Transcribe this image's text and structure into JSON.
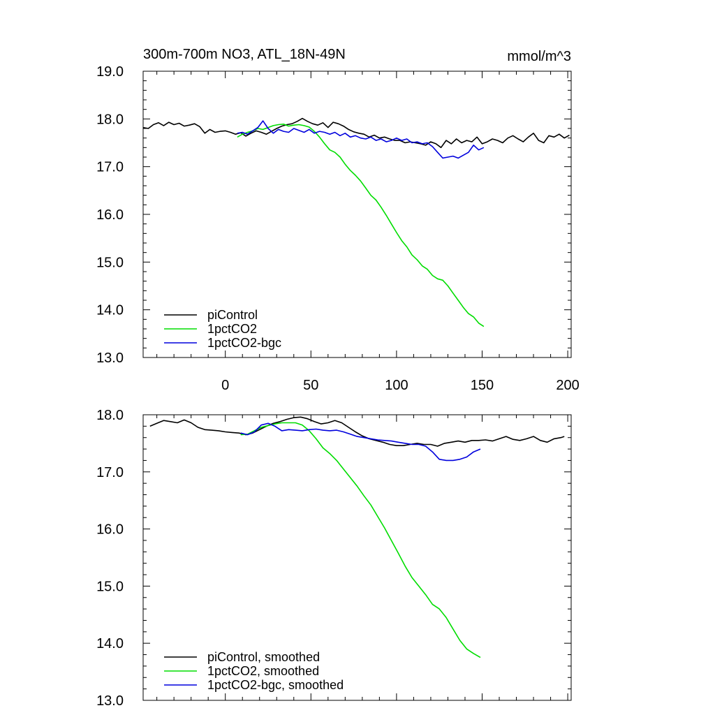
{
  "chart_data": [
    {
      "type": "line",
      "title": "300m-700m NO3, ATL_18N-49N",
      "units": "mmol/m^3",
      "xlim": [
        -48,
        202
      ],
      "ylim": [
        13.0,
        19.0
      ],
      "xticks": [
        0,
        50,
        100,
        150,
        200
      ],
      "xtick_labels": [
        "0",
        "50",
        "100",
        "150",
        "200"
      ],
      "yticks": [
        13.0,
        14.0,
        15.0,
        16.0,
        17.0,
        18.0,
        19.0
      ],
      "ytick_labels": [
        "13.0",
        "14.0",
        "15.0",
        "16.0",
        "17.0",
        "18.0",
        "19.0"
      ],
      "legend_position": "bottom-left",
      "series": [
        {
          "name": "piControl",
          "color": "#000000",
          "x": [
            -48,
            -45,
            -42,
            -39,
            -36,
            -33,
            -30,
            -27,
            -24,
            -21,
            -18,
            -15,
            -12,
            -9,
            -6,
            -3,
            0,
            3,
            6,
            9,
            12,
            15,
            18,
            21,
            24,
            27,
            30,
            33,
            36,
            39,
            42,
            45,
            48,
            51,
            54,
            57,
            60,
            63,
            66,
            69,
            72,
            75,
            78,
            81,
            84,
            87,
            90,
            93,
            96,
            99,
            102,
            105,
            108,
            111,
            114,
            117,
            120,
            123,
            126,
            129,
            132,
            135,
            138,
            141,
            144,
            147,
            150,
            153,
            156,
            159,
            162,
            165,
            168,
            171,
            174,
            177,
            180,
            183,
            186,
            189,
            192,
            195,
            198,
            201
          ],
          "y": [
            17.82,
            17.8,
            17.88,
            17.92,
            17.86,
            17.93,
            17.88,
            17.91,
            17.85,
            17.87,
            17.9,
            17.84,
            17.7,
            17.78,
            17.72,
            17.74,
            17.75,
            17.72,
            17.68,
            17.71,
            17.64,
            17.7,
            17.75,
            17.72,
            17.68,
            17.74,
            17.8,
            17.85,
            17.88,
            17.9,
            17.95,
            18.01,
            17.95,
            17.9,
            17.87,
            17.92,
            17.82,
            17.93,
            17.9,
            17.85,
            17.78,
            17.73,
            17.7,
            17.68,
            17.62,
            17.66,
            17.6,
            17.62,
            17.58,
            17.55,
            17.55,
            17.5,
            17.52,
            17.5,
            17.48,
            17.45,
            17.52,
            17.48,
            17.4,
            17.55,
            17.48,
            17.58,
            17.5,
            17.55,
            17.52,
            17.62,
            17.48,
            17.52,
            17.58,
            17.55,
            17.5,
            17.6,
            17.65,
            17.58,
            17.52,
            17.62,
            17.7,
            17.55,
            17.5,
            17.65,
            17.62,
            17.68,
            17.6,
            17.66
          ]
        },
        {
          "name": "1pctCO2",
          "color": "#00dd00",
          "x": [
            7,
            10,
            13,
            16,
            19,
            22,
            25,
            28,
            31,
            34,
            37,
            40,
            43,
            46,
            49,
            52,
            55,
            58,
            61,
            64,
            67,
            70,
            73,
            76,
            79,
            82,
            85,
            88,
            91,
            94,
            97,
            100,
            103,
            106,
            109,
            112,
            115,
            118,
            121,
            124,
            127,
            130,
            133,
            136,
            139,
            142,
            145,
            148,
            151
          ],
          "y": [
            17.62,
            17.68,
            17.72,
            17.75,
            17.8,
            17.78,
            17.82,
            17.86,
            17.88,
            17.89,
            17.85,
            17.87,
            17.88,
            17.86,
            17.83,
            17.74,
            17.62,
            17.48,
            17.35,
            17.3,
            17.2,
            17.05,
            16.92,
            16.82,
            16.7,
            16.55,
            16.4,
            16.3,
            16.15,
            15.98,
            15.8,
            15.62,
            15.45,
            15.32,
            15.15,
            15.05,
            14.92,
            14.85,
            14.72,
            14.65,
            14.62,
            14.5,
            14.35,
            14.2,
            14.05,
            13.92,
            13.85,
            13.72,
            13.65
          ]
        },
        {
          "name": "1pctCO2-bgc",
          "color": "#0000dd",
          "x": [
            7,
            10,
            13,
            16,
            19,
            22,
            25,
            28,
            31,
            34,
            37,
            40,
            43,
            46,
            49,
            52,
            55,
            58,
            61,
            64,
            67,
            70,
            73,
            76,
            79,
            82,
            85,
            88,
            91,
            94,
            97,
            100,
            103,
            106,
            109,
            112,
            115,
            118,
            121,
            124,
            127,
            130,
            133,
            136,
            139,
            142,
            145,
            148,
            151
          ],
          "y": [
            17.7,
            17.72,
            17.68,
            17.75,
            17.82,
            17.96,
            17.8,
            17.7,
            17.78,
            17.74,
            17.72,
            17.8,
            17.76,
            17.72,
            17.78,
            17.7,
            17.74,
            17.72,
            17.68,
            17.72,
            17.65,
            17.7,
            17.62,
            17.65,
            17.6,
            17.58,
            17.62,
            17.55,
            17.58,
            17.52,
            17.55,
            17.6,
            17.55,
            17.58,
            17.5,
            17.52,
            17.48,
            17.5,
            17.42,
            17.3,
            17.18,
            17.2,
            17.22,
            17.18,
            17.24,
            17.3,
            17.45,
            17.35,
            17.4
          ]
        }
      ]
    },
    {
      "type": "line",
      "xlim": [
        -48,
        202
      ],
      "ylim": [
        13.0,
        18.0
      ],
      "xticks": [
        0,
        50,
        100,
        150,
        200
      ],
      "yticks": [
        13.0,
        14.0,
        15.0,
        16.0,
        17.0,
        18.0
      ],
      "ytick_labels": [
        "13.0",
        "14.0",
        "15.0",
        "16.0",
        "17.0",
        "18.0"
      ],
      "legend_position": "bottom-left",
      "series": [
        {
          "name": "piControl, smoothed",
          "color": "#000000",
          "x": [
            -44,
            -40,
            -36,
            -32,
            -28,
            -24,
            -20,
            -16,
            -12,
            -8,
            -4,
            0,
            4,
            8,
            12,
            16,
            20,
            24,
            28,
            32,
            36,
            40,
            44,
            48,
            52,
            56,
            60,
            64,
            68,
            72,
            76,
            80,
            84,
            88,
            92,
            96,
            100,
            104,
            108,
            112,
            116,
            120,
            124,
            128,
            132,
            136,
            140,
            144,
            148,
            152,
            156,
            160,
            164,
            168,
            172,
            176,
            180,
            184,
            188,
            192,
            196,
            198
          ],
          "y": [
            17.8,
            17.85,
            17.9,
            17.88,
            17.86,
            17.91,
            17.86,
            17.78,
            17.74,
            17.73,
            17.72,
            17.7,
            17.69,
            17.68,
            17.65,
            17.68,
            17.74,
            17.8,
            17.85,
            17.88,
            17.92,
            17.95,
            17.96,
            17.93,
            17.88,
            17.84,
            17.86,
            17.9,
            17.86,
            17.78,
            17.7,
            17.63,
            17.58,
            17.55,
            17.52,
            17.48,
            17.46,
            17.46,
            17.48,
            17.5,
            17.48,
            17.48,
            17.45,
            17.5,
            17.52,
            17.54,
            17.52,
            17.55,
            17.55,
            17.56,
            17.54,
            17.58,
            17.62,
            17.57,
            17.55,
            17.58,
            17.62,
            17.55,
            17.52,
            17.58,
            17.6,
            17.62
          ]
        },
        {
          "name": "1pctCO2, smoothed",
          "color": "#00dd00",
          "x": [
            9,
            13,
            17,
            21,
            25,
            29,
            33,
            37,
            41,
            45,
            49,
            53,
            57,
            61,
            65,
            69,
            73,
            77,
            81,
            85,
            89,
            93,
            97,
            101,
            105,
            109,
            113,
            117,
            121,
            125,
            129,
            133,
            137,
            141,
            145,
            149
          ],
          "y": [
            17.65,
            17.66,
            17.72,
            17.78,
            17.81,
            17.84,
            17.86,
            17.86,
            17.86,
            17.82,
            17.72,
            17.58,
            17.42,
            17.32,
            17.2,
            17.05,
            16.9,
            16.75,
            16.58,
            16.42,
            16.22,
            16.02,
            15.8,
            15.58,
            15.35,
            15.15,
            15.0,
            14.85,
            14.68,
            14.6,
            14.45,
            14.25,
            14.05,
            13.9,
            13.82,
            13.75
          ]
        },
        {
          "name": "1pctCO2-bgc, smoothed",
          "color": "#0000dd",
          "x": [
            9,
            13,
            17,
            21,
            25,
            29,
            33,
            37,
            41,
            45,
            49,
            53,
            57,
            61,
            65,
            69,
            73,
            77,
            81,
            85,
            89,
            93,
            97,
            101,
            105,
            109,
            113,
            117,
            121,
            125,
            129,
            133,
            137,
            141,
            145,
            149
          ],
          "y": [
            17.68,
            17.65,
            17.7,
            17.82,
            17.85,
            17.8,
            17.72,
            17.74,
            17.73,
            17.72,
            17.74,
            17.75,
            17.73,
            17.72,
            17.73,
            17.7,
            17.66,
            17.62,
            17.6,
            17.58,
            17.56,
            17.55,
            17.54,
            17.52,
            17.5,
            17.48,
            17.48,
            17.45,
            17.35,
            17.22,
            17.2,
            17.2,
            17.22,
            17.26,
            17.35,
            17.4
          ]
        }
      ]
    }
  ]
}
